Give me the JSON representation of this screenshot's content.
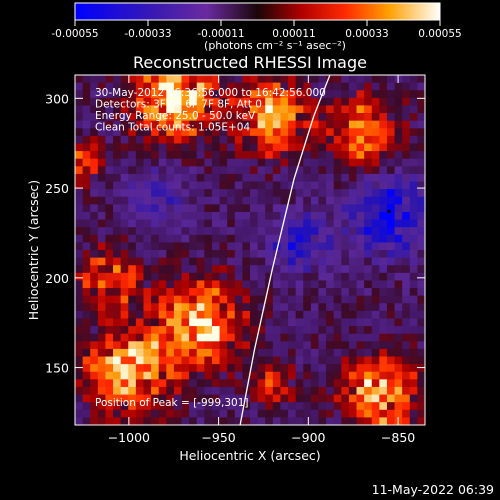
{
  "chart_data": {
    "type": "heatmap",
    "title": "Reconstructed RHESSI Image",
    "xlabel": "Heliocentric X (arcsec)",
    "ylabel": "Heliocentric Y (arcsec)",
    "xlim": [
      -1030,
      -835
    ],
    "ylim": [
      118,
      313
    ],
    "x_ticks": [
      -1000,
      -950,
      -900,
      -850
    ],
    "y_ticks": [
      150,
      200,
      250,
      300
    ],
    "colorbar": {
      "min": -0.00055,
      "max": 0.00055,
      "ticks": [
        "-0.00055",
        "-0.00033",
        "-0.00011",
        "0.00011",
        "0.00033",
        "0.00055"
      ],
      "unit": "(photons cm⁻² s⁻¹ asec⁻²)"
    },
    "annotations": [
      "30-May-2012 16:36:56.000 to 16:42:56.000",
      "Detectors: 3F 5F 6F 7F 8F, Att 0",
      "Energy Range: 25.0 - 50.0 keV",
      "Clean    Total counts: 1.05E+04"
    ],
    "peak_label": "Position of Peak = [-999,301]",
    "peak": [
      -999,
      301
    ],
    "limb": [
      [
        -938,
        118
      ],
      [
        -930,
        160
      ],
      [
        -920,
        205
      ],
      [
        -908,
        255
      ],
      [
        -897,
        290
      ],
      [
        -888,
        313
      ]
    ],
    "sources": [
      {
        "x": -975,
        "y": 300,
        "sigma": 15,
        "amp": 1.0
      },
      {
        "x": -920,
        "y": 290,
        "sigma": 14,
        "amp": 0.8
      },
      {
        "x": -870,
        "y": 280,
        "sigma": 14,
        "amp": 0.7
      },
      {
        "x": -1010,
        "y": 200,
        "sigma": 12,
        "amp": 0.6
      },
      {
        "x": -960,
        "y": 175,
        "sigma": 16,
        "amp": 0.9
      },
      {
        "x": -1000,
        "y": 150,
        "sigma": 16,
        "amp": 0.9
      },
      {
        "x": -860,
        "y": 135,
        "sigma": 14,
        "amp": 0.9
      },
      {
        "x": -920,
        "y": 140,
        "sigma": 8,
        "amp": 0.5
      },
      {
        "x": -1025,
        "y": 265,
        "sigma": 8,
        "amp": 0.5
      }
    ],
    "negative_sources": [
      {
        "x": -855,
        "y": 235,
        "sigma": 15,
        "amp": 0.8
      },
      {
        "x": -905,
        "y": 220,
        "sigma": 12,
        "amp": 0.5
      },
      {
        "x": -985,
        "y": 245,
        "sigma": 12,
        "amp": 0.35
      }
    ]
  },
  "footer_date": "11-May-2022 06:39"
}
